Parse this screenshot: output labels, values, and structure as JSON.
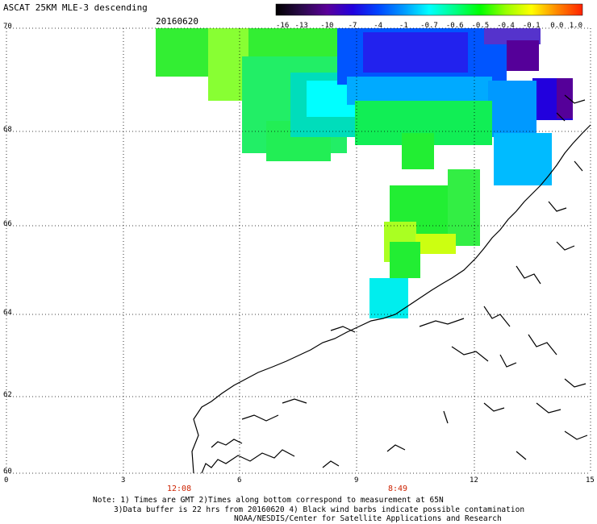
{
  "header": {
    "title": "ASCAT 25KM MLE-3 descending",
    "date": "20160620"
  },
  "colorbar": {
    "labels": [
      "-16",
      "-13",
      "-10",
      "-7",
      "-4",
      "-1",
      "-0.7",
      "-0.6",
      "-0.5",
      "-0.4",
      "-0.1",
      "0.0",
      "1.0"
    ],
    "colors": [
      "#000000",
      "#2a0a4a",
      "#5a0099",
      "#2200dd",
      "#0044ff",
      "#0099ff",
      "#00ffff",
      "#00ff88",
      "#00ff00",
      "#99ff00",
      "#ffff00",
      "#ff8800",
      "#ff2200"
    ]
  },
  "axes": {
    "lat_labels": [
      "70",
      "68",
      "66",
      "64",
      "62",
      "60"
    ],
    "lon_labels": [
      "0",
      "3",
      "6",
      "9",
      "12",
      "15"
    ],
    "times": [
      "12:08",
      "8:49"
    ]
  },
  "notes": [
    "Note: 1) Times are GMT 2)Times along bottom correspond to measurement at 65N",
    "3)Data buffer is 22 hrs from 20160620 4) Black wind barbs indicate possible contamination",
    "NOAA/NESDIS/Center for Satellite Applications and Research"
  ]
}
